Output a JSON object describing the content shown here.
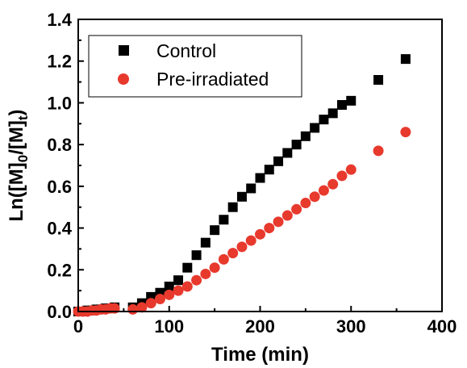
{
  "chart_data": {
    "type": "scatter",
    "title": "",
    "xlabel": "Time (min)",
    "ylabel_main": "Ln([M]",
    "ylabel_sub1": "0",
    "ylabel_mid": "/[M]",
    "ylabel_sub2": "t",
    "ylabel_end": ")",
    "xlim": [
      0,
      400
    ],
    "ylim": [
      0,
      1.4
    ],
    "x_ticks": [
      0,
      100,
      200,
      300,
      400
    ],
    "x_tick_labels": [
      "0",
      "100",
      "200",
      "300",
      "400"
    ],
    "y_ticks": [
      0.0,
      0.2,
      0.4,
      0.6,
      0.8,
      1.0,
      1.2,
      1.4
    ],
    "y_tick_labels": [
      "0.0",
      "0.2",
      "0.4",
      "0.6",
      "0.8",
      "1.0",
      "1.2",
      "1.4"
    ],
    "grid": false,
    "legend_position": "top-left",
    "series": [
      {
        "name": "Control",
        "marker": "square",
        "color": "#000000",
        "points": [
          [
            0,
            0.0
          ],
          [
            5,
            0.0
          ],
          [
            10,
            0.005
          ],
          [
            15,
            0.005
          ],
          [
            20,
            0.01
          ],
          [
            25,
            0.01
          ],
          [
            30,
            0.015
          ],
          [
            35,
            0.015
          ],
          [
            40,
            0.02
          ],
          [
            60,
            0.02
          ],
          [
            70,
            0.04
          ],
          [
            80,
            0.07
          ],
          [
            90,
            0.09
          ],
          [
            100,
            0.12
          ],
          [
            110,
            0.15
          ],
          [
            120,
            0.21
          ],
          [
            130,
            0.27
          ],
          [
            140,
            0.33
          ],
          [
            150,
            0.39
          ],
          [
            160,
            0.44
          ],
          [
            170,
            0.5
          ],
          [
            180,
            0.55
          ],
          [
            190,
            0.59
          ],
          [
            200,
            0.64
          ],
          [
            210,
            0.68
          ],
          [
            220,
            0.72
          ],
          [
            230,
            0.76
          ],
          [
            240,
            0.8
          ],
          [
            250,
            0.84
          ],
          [
            260,
            0.88
          ],
          [
            270,
            0.92
          ],
          [
            280,
            0.95
          ],
          [
            290,
            0.99
          ],
          [
            300,
            1.01
          ],
          [
            330,
            1.11
          ],
          [
            360,
            1.21
          ]
        ]
      },
      {
        "name": "Pre-irradiated",
        "marker": "circle",
        "color": "#e8392d",
        "points": [
          [
            0,
            0.0
          ],
          [
            5,
            0.0
          ],
          [
            10,
            0.0
          ],
          [
            15,
            0.005
          ],
          [
            20,
            0.005
          ],
          [
            25,
            0.01
          ],
          [
            30,
            0.01
          ],
          [
            35,
            0.015
          ],
          [
            40,
            0.015
          ],
          [
            60,
            0.01
          ],
          [
            70,
            0.02
          ],
          [
            80,
            0.04
          ],
          [
            90,
            0.06
          ],
          [
            100,
            0.08
          ],
          [
            110,
            0.1
          ],
          [
            120,
            0.12
          ],
          [
            130,
            0.15
          ],
          [
            140,
            0.18
          ],
          [
            150,
            0.21
          ],
          [
            160,
            0.25
          ],
          [
            170,
            0.28
          ],
          [
            180,
            0.31
          ],
          [
            190,
            0.34
          ],
          [
            200,
            0.37
          ],
          [
            210,
            0.4
          ],
          [
            220,
            0.43
          ],
          [
            230,
            0.46
          ],
          [
            240,
            0.49
          ],
          [
            250,
            0.52
          ],
          [
            260,
            0.55
          ],
          [
            270,
            0.58
          ],
          [
            280,
            0.61
          ],
          [
            290,
            0.65
          ],
          [
            300,
            0.68
          ],
          [
            330,
            0.77
          ],
          [
            360,
            0.86
          ]
        ]
      }
    ]
  }
}
